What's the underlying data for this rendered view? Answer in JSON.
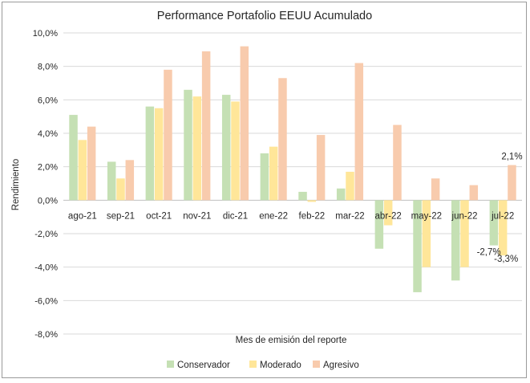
{
  "chart_data": {
    "type": "bar",
    "title": "Performance Portafolio EEUU Acumulado",
    "xlabel": "Mes de emisión del reporte",
    "ylabel": "Rendimiento",
    "ylim": [
      -8,
      10
    ],
    "yticks": [
      10,
      8,
      6,
      4,
      2,
      0,
      -2,
      -4,
      -6,
      -8
    ],
    "ytick_labels": [
      "10,0%",
      "8,0%",
      "6,0%",
      "4,0%",
      "2,0%",
      "0,0%",
      "-2,0%",
      "-4,0%",
      "-6,0%",
      "-8,0%"
    ],
    "grid": true,
    "legend_position": "bottom",
    "categories": [
      "ago-21",
      "sep-21",
      "oct-21",
      "nov-21",
      "dic-21",
      "ene-22",
      "feb-22",
      "mar-22",
      "abr-22",
      "may-22",
      "jun-22",
      "jul-22"
    ],
    "series": [
      {
        "name": "Conservador",
        "color": "#c5e0b4",
        "values": [
          5.1,
          2.3,
          5.6,
          6.6,
          6.3,
          2.8,
          0.5,
          0.7,
          -2.9,
          -5.5,
          -4.8,
          -2.7
        ]
      },
      {
        "name": "Moderado",
        "color": "#ffe699",
        "values": [
          3.6,
          1.3,
          5.5,
          6.2,
          5.9,
          3.2,
          -0.1,
          1.7,
          -1.5,
          -4.0,
          -4.0,
          -3.3
        ]
      },
      {
        "name": "Agresivo",
        "color": "#f8cbad",
        "values": [
          4.4,
          2.4,
          7.8,
          8.9,
          9.2,
          7.3,
          3.9,
          8.2,
          4.5,
          1.3,
          0.9,
          2.1
        ]
      }
    ],
    "data_labels": [
      {
        "series": "Agresivo",
        "category": "jul-22",
        "text": "2,1%"
      },
      {
        "series": "Conservador",
        "category": "jul-22",
        "text": "-2,7%"
      },
      {
        "series": "Moderado",
        "category": "jul-22",
        "text": "-3,3%"
      }
    ]
  }
}
